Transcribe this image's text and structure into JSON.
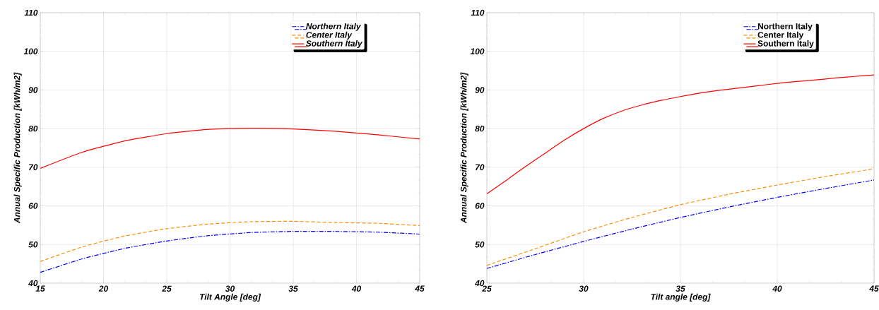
{
  "chart_data": [
    {
      "type": "line",
      "xlabel": "Tilt Angle [deg]",
      "ylabel": "Annual Specific Production [kWh/m2]",
      "x": [
        15,
        18.33,
        21.67,
        25,
        28.33,
        31.67,
        35,
        38.33,
        41.67,
        45
      ],
      "series": [
        {
          "name": "Northern Italy",
          "color": "#0000ff",
          "line_style": "dashdot",
          "values": [
            42.8,
            46.3,
            49.0,
            50.9,
            52.3,
            53.1,
            53.4,
            53.4,
            53.2,
            52.7
          ]
        },
        {
          "name": "Center Italy",
          "color": "#ff8c00",
          "line_style": "dashed",
          "values": [
            45.6,
            49.4,
            52.2,
            54.1,
            55.3,
            55.9,
            56.0,
            55.7,
            55.5,
            54.9
          ]
        },
        {
          "name": "Southern Italy",
          "color": "#ff0000",
          "line_style": "solid",
          "values": [
            69.7,
            73.9,
            76.8,
            78.7,
            79.8,
            80.1,
            79.9,
            79.3,
            78.4,
            77.3
          ]
        }
      ],
      "xlim": [
        15,
        45
      ],
      "xticks": [
        15,
        20,
        25,
        30,
        35,
        40,
        45
      ],
      "ylim": [
        40,
        110
      ],
      "yticks": [
        40,
        50,
        60,
        70,
        80,
        90,
        100,
        110
      ],
      "grid": true,
      "legend": "top right"
    },
    {
      "type": "line",
      "xlabel": "Tilt angle [deg]",
      "ylabel": "Annual Specific Production [kWh/m2]",
      "series": [
        {
          "name": "Northern Italy",
          "color": "#0000ff",
          "line_style": "dashdot",
          "x": [
            25,
            27.5,
            30,
            32.5,
            35,
            37.5,
            40,
            42.5,
            45
          ],
          "values": [
            43.8,
            47.4,
            50.8,
            54.0,
            57.0,
            59.7,
            62.2,
            64.5,
            66.7
          ]
        },
        {
          "name": "Center Italy",
          "color": "#ff8c00",
          "line_style": "dashed",
          "x": [
            25,
            27.5,
            30,
            32.5,
            35,
            37.5,
            40,
            42.5,
            45
          ],
          "values": [
            44.6,
            48.9,
            53.3,
            57.0,
            60.3,
            63.0,
            65.4,
            67.6,
            69.6
          ]
        },
        {
          "name": "Southern Italy",
          "color": "#ff0000",
          "line_style": "solid",
          "x": [
            25,
            26,
            27,
            28,
            29,
            30,
            31,
            32,
            33,
            34,
            35,
            36,
            37,
            38,
            39,
            40,
            41,
            42,
            43,
            44,
            45
          ],
          "values": [
            63.1,
            66.6,
            70.2,
            73.6,
            77.0,
            80.0,
            82.6,
            84.6,
            86.1,
            87.3,
            88.3,
            89.2,
            89.9,
            90.5,
            91.1,
            91.7,
            92.2,
            92.6,
            93.1,
            93.5,
            93.9
          ]
        }
      ],
      "xlim": [
        25,
        45
      ],
      "xticks": [
        25,
        30,
        35,
        40,
        45
      ],
      "ylim": [
        40,
        110
      ],
      "yticks": [
        40,
        50,
        60,
        70,
        80,
        90,
        100,
        110
      ],
      "grid": true,
      "legend": "top right"
    }
  ]
}
